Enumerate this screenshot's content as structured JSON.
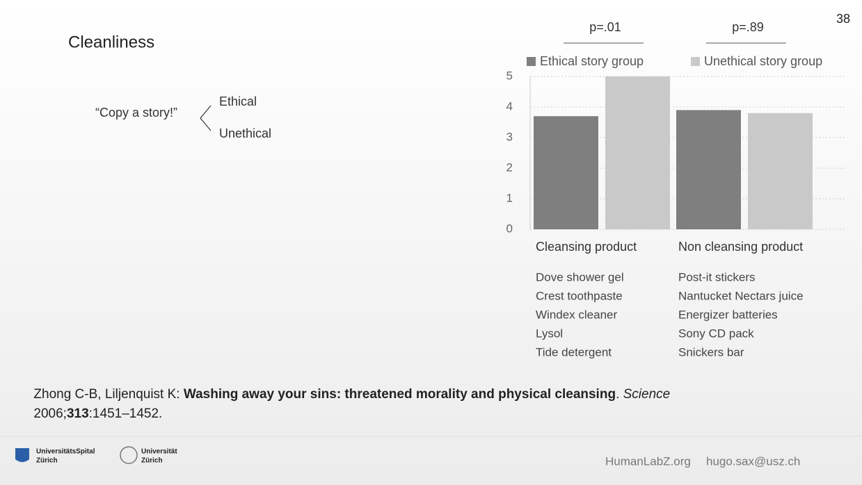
{
  "page_number": "38",
  "heading": "Cleanliness",
  "diagram": {
    "prompt": "“Copy a story!”",
    "branches": [
      "Ethical",
      "Unethical"
    ]
  },
  "chart_data": {
    "type": "bar",
    "categories": [
      "Cleansing product",
      "Non cleansing product"
    ],
    "series": [
      {
        "name": "Ethical story group",
        "color": "#7f7f7f",
        "values": [
          3.7,
          3.9
        ]
      },
      {
        "name": "Unethical story group",
        "color": "#c9c9c9",
        "values": [
          5,
          3.8
        ]
      }
    ],
    "ylim": [
      0,
      5
    ],
    "yticks": [
      0,
      1,
      2,
      3,
      4,
      5
    ],
    "grid": true,
    "legend": "top",
    "annotations": [
      "p=.01",
      "p=.89"
    ],
    "category_items": [
      [
        "Dove shower gel",
        "Crest toothpaste",
        "Windex cleaner",
        "Lysol",
        "Tide detergent"
      ],
      [
        "Post-it stickers",
        "Nantucket Nectars juice",
        "Energizer batteries",
        "Sony CD pack",
        "Snickers bar"
      ]
    ]
  },
  "citation": {
    "line1": [
      "Zhong C-B, Liljenquist K: ",
      "Washing away your sins: threatened morality and physical cleansing",
      ". ",
      "Science"
    ],
    "line2": [
      "2006;",
      "313",
      ":1451–1452."
    ]
  },
  "footer": {
    "logos": [
      [
        "UniversitätsSpital",
        "Zürich"
      ],
      [
        "Universität",
        "Zürich"
      ]
    ],
    "website": "HumanLabZ.org",
    "email": "hugo.sax@usz.ch"
  }
}
